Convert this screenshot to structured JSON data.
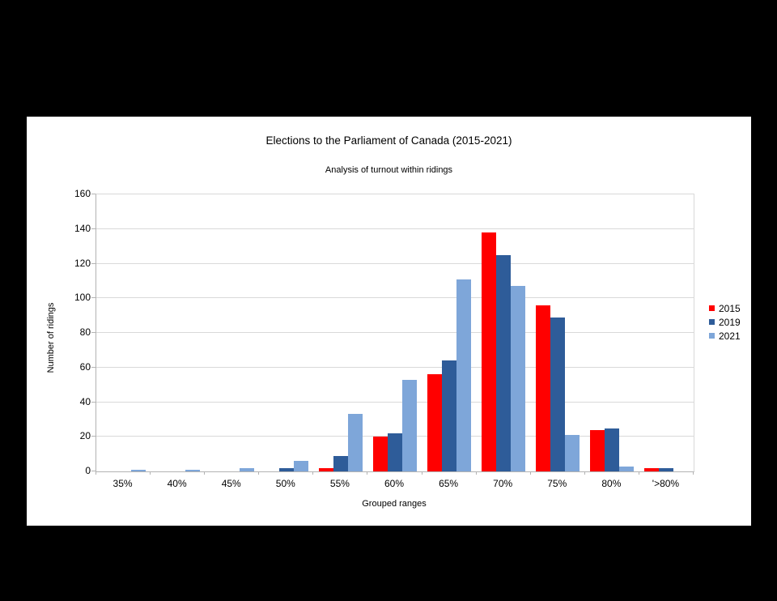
{
  "page": {
    "background_color": "#000000",
    "chart_background_color": "#ffffff"
  },
  "chart_data": {
    "type": "bar",
    "title": "Elections to the Parliament of Canada (2015-2021)",
    "subtitle": "Analysis of turnout within ridings",
    "xlabel": "Grouped ranges",
    "ylabel": "Number of ridings",
    "categories": [
      "35%",
      "40%",
      "45%",
      "50%",
      "55%",
      "60%",
      "65%",
      "70%",
      "75%",
      "80%",
      "'>80%"
    ],
    "series": [
      {
        "name": "2015",
        "color": "#ff0000",
        "values": [
          0,
          0,
          0,
          0,
          2,
          20,
          56,
          138,
          96,
          24,
          2
        ]
      },
      {
        "name": "2019",
        "color": "#2e5c99",
        "values": [
          0,
          0,
          0,
          2,
          9,
          22,
          64,
          125,
          89,
          25,
          2
        ]
      },
      {
        "name": "2021",
        "color": "#7ea6d9",
        "values": [
          1,
          1,
          2,
          6,
          33,
          53,
          111,
          107,
          21,
          3,
          0
        ]
      }
    ],
    "ylim": [
      0,
      160
    ],
    "yticks": [
      0,
      20,
      40,
      60,
      80,
      100,
      120,
      140,
      160
    ],
    "grid": "horizontal",
    "legend_position": "right",
    "gridline_color": "#d9d9d9",
    "axis_color": "#b3b3b3"
  }
}
